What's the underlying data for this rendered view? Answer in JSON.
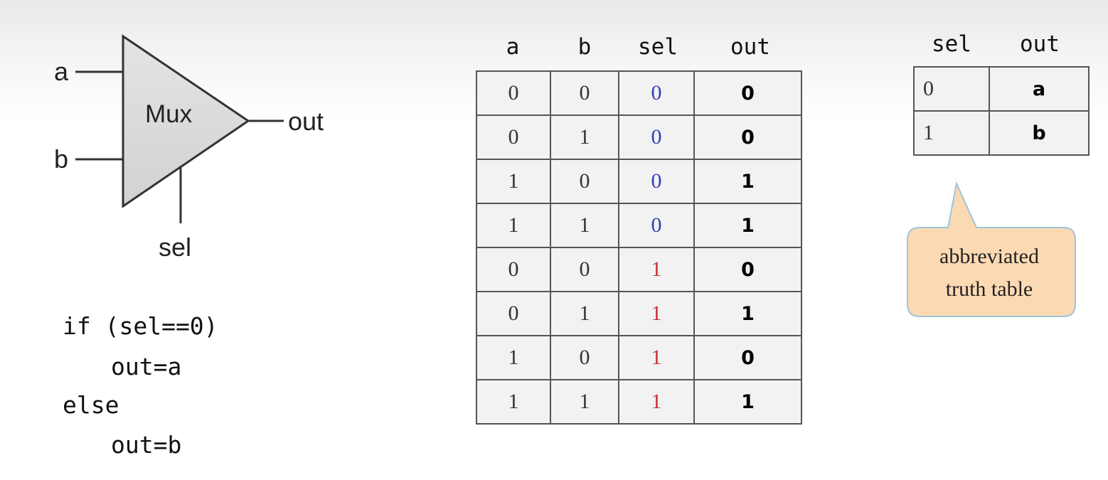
{
  "mux": {
    "block_label": "Mux",
    "input_a": "a",
    "input_b": "b",
    "select": "sel",
    "output": "out"
  },
  "code": {
    "line1": "if (sel==0)",
    "line2": "out=a",
    "line3": "else",
    "line4": "out=b"
  },
  "truth_table": {
    "headers": [
      "a",
      "b",
      "sel",
      "out"
    ],
    "rows": [
      [
        "0",
        "0",
        "0",
        "0"
      ],
      [
        "0",
        "1",
        "0",
        "0"
      ],
      [
        "1",
        "0",
        "0",
        "1"
      ],
      [
        "1",
        "1",
        "0",
        "1"
      ],
      [
        "0",
        "0",
        "1",
        "0"
      ],
      [
        "0",
        "1",
        "1",
        "1"
      ],
      [
        "1",
        "0",
        "1",
        "0"
      ],
      [
        "1",
        "1",
        "1",
        "1"
      ]
    ],
    "sel_colors": {
      "0": "#3040b8",
      "1": "#c8303a"
    }
  },
  "abbreviated_table": {
    "headers": [
      "sel",
      "out"
    ],
    "rows": [
      [
        "0",
        "a"
      ],
      [
        "1",
        "b"
      ]
    ]
  },
  "callout": {
    "line1": "abbreviated",
    "line2": "truth table",
    "fill": "#fbd9b3"
  }
}
